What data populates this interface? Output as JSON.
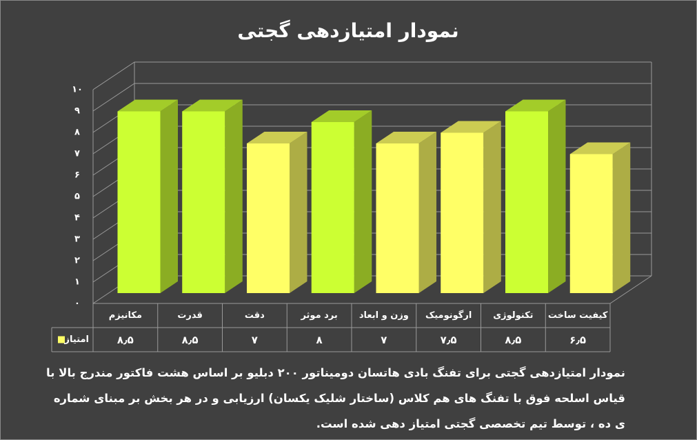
{
  "chart_data": {
    "type": "bar3d",
    "title": "نمودار امتیازدهی گجتی",
    "categories": [
      "مکانیزم",
      "قدرت",
      "دقت",
      "برد موثر",
      "وزن و ابعاد",
      "ارگونومیک",
      "تکنولوژی",
      "کیفیت ساخت"
    ],
    "series": [
      {
        "name": "امتیاز",
        "color": "#ffff66",
        "values": [
          8.5,
          8.5,
          7,
          8,
          7,
          7.5,
          8.5,
          6.5
        ],
        "value_labels": [
          "۸٫۵",
          "۸٫۵",
          "۷",
          "۸",
          "۷",
          "۷٫۵",
          "۸٫۵",
          "۶٫۵"
        ],
        "colors": [
          "#ccff33",
          "#ccff33",
          "#ffff66",
          "#ccff33",
          "#ffff66",
          "#ffff66",
          "#ccff33",
          "#ffff66"
        ]
      }
    ],
    "ylim": [
      0,
      10
    ],
    "yticks": [
      {
        "value": 0,
        "label": "۰"
      },
      {
        "value": 1,
        "label": "۱"
      },
      {
        "value": 2,
        "label": "۲"
      },
      {
        "value": 3,
        "label": "۳"
      },
      {
        "value": 4,
        "label": "۴"
      },
      {
        "value": 5,
        "label": "۵"
      },
      {
        "value": 6,
        "label": "۶"
      },
      {
        "value": 7,
        "label": "۷"
      },
      {
        "value": 8,
        "label": "۸"
      },
      {
        "value": 9,
        "label": "۹"
      },
      {
        "value": 10,
        "label": "۱۰"
      }
    ],
    "grid": true
  },
  "caption": "نمودار امتیازدهی گجتی برای تفنگ بادی هاتسان دومیناتور ۲۰۰ دبلیو بر اساس هشت فاکتور مندرج بالا با قیاس اسلحه فوق با تفنگ های هم کلاس (ساختار شلیک یکسان) ارزیابی و در هر بخش بر مبنای شماره ی ده ، توسط تیم تخصصی گجتی امتیاز دهی شده است."
}
